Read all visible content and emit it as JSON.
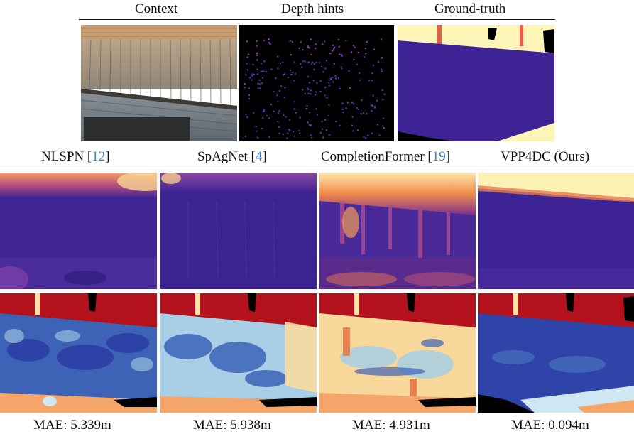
{
  "top_row": {
    "headers": [
      "Context",
      "Depth hints",
      "Ground-truth"
    ]
  },
  "methods": [
    {
      "name": "NLSPN [",
      "ref": "12",
      "suffix": "]",
      "mae": "MAE: 5.339m"
    },
    {
      "name": "SpAgNet [",
      "ref": "4",
      "suffix": "]",
      "mae": "MAE: 5.938m"
    },
    {
      "name": "CompletionFormer [",
      "ref": "19",
      "suffix": "]",
      "mae": "MAE: 4.931m"
    },
    {
      "name": "VPP4DC (Ours)",
      "ref": "",
      "suffix": "",
      "mae": "MAE: 0.094m"
    }
  ],
  "colors": {
    "depth_far": "#fdf5b8",
    "depth_mid": "#f08a4c",
    "depth_near": "#3d1f8c",
    "error_high": "#b3121c",
    "error_low": "#2a3aa3",
    "error_mid": "#a8cfe6"
  }
}
